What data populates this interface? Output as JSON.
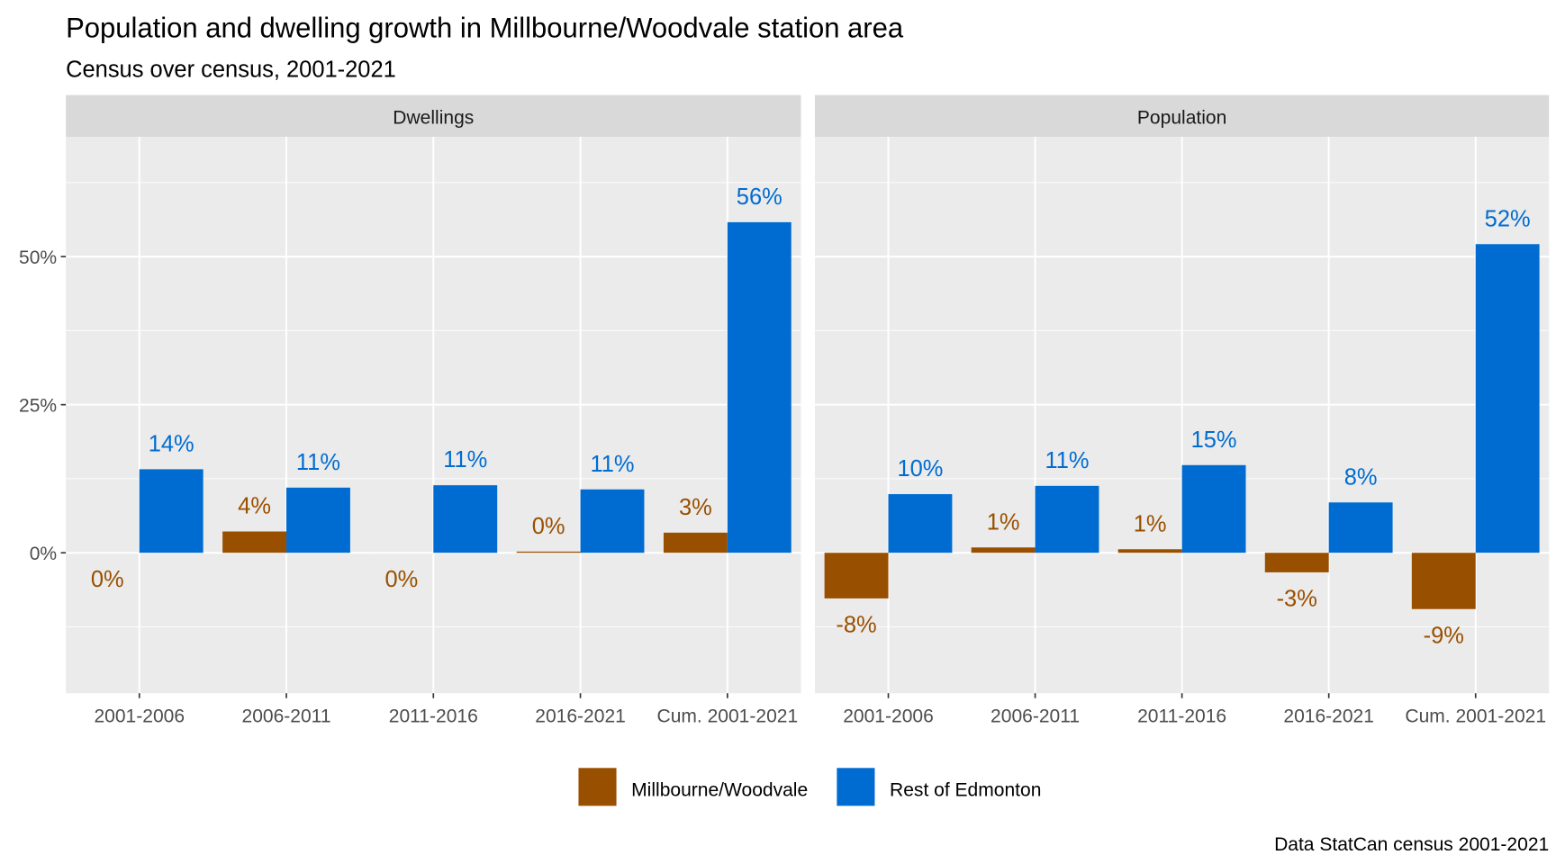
{
  "chart_data": {
    "type": "bar",
    "title": "Population and dwelling growth in Millbourne/Woodvale station area",
    "subtitle": "Census over census, 2001-2021",
    "caption": "Data StatCan census 2001-2021",
    "categories": [
      "2001-2006",
      "2006-2011",
      "2011-2016",
      "2016-2021",
      "Cum. 2001-2021"
    ],
    "ylim": [
      -23.7,
      70.2
    ],
    "yticks": [
      0,
      25,
      50
    ],
    "ytick_labels": [
      "0%",
      "25%",
      "50%"
    ],
    "grid": true,
    "legend_position": "bottom",
    "colors": {
      "Millbourne/Woodvale": "#994F00",
      "Rest of Edmonton": "#006CD1"
    },
    "legend": [
      "Millbourne/Woodvale",
      "Rest of Edmonton"
    ],
    "panels": [
      {
        "name": "Dwellings",
        "series": [
          {
            "name": "Millbourne/Woodvale",
            "values": [
              0,
              3.6,
              0,
              0.2,
              3.4
            ],
            "labels": [
              "0%",
              "4%",
              "0%",
              "0%",
              "3%"
            ]
          },
          {
            "name": "Rest of Edmonton",
            "values": [
              14.1,
              11.0,
              11.4,
              10.7,
              55.8
            ],
            "labels": [
              "14%",
              "11%",
              "11%",
              "11%",
              "56%"
            ]
          }
        ]
      },
      {
        "name": "Population",
        "series": [
          {
            "name": "Millbourne/Woodvale",
            "values": [
              -7.7,
              0.9,
              0.6,
              -3.3,
              -9.5
            ],
            "labels": [
              "-8%",
              "1%",
              "1%",
              "-3%",
              "-9%"
            ]
          },
          {
            "name": "Rest of Edmonton",
            "values": [
              9.9,
              11.3,
              14.8,
              8.5,
              52.1
            ],
            "labels": [
              "10%",
              "11%",
              "15%",
              "8%",
              "52%"
            ]
          }
        ]
      }
    ]
  }
}
